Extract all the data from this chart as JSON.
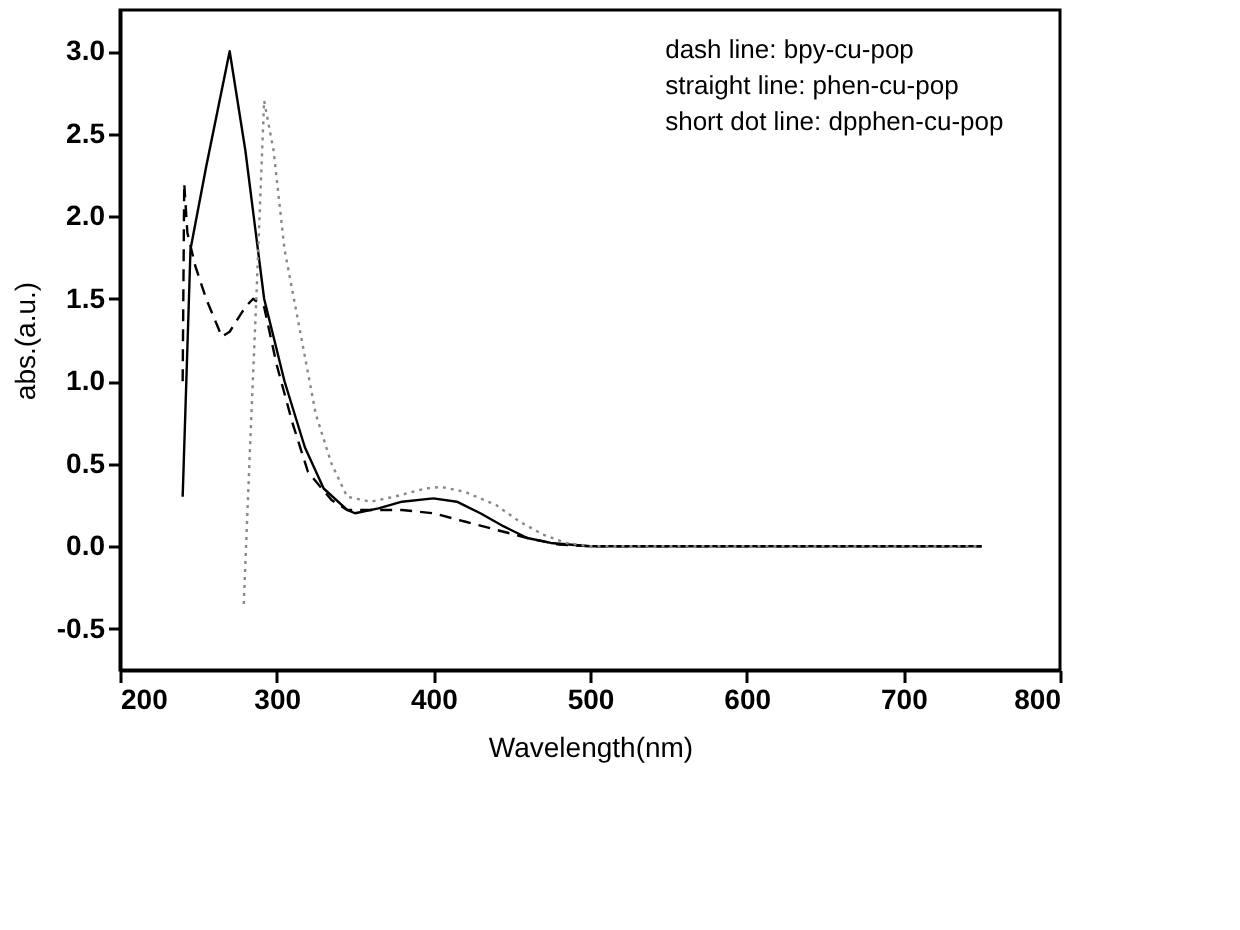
{
  "chart_data": {
    "type": "line",
    "xlabel": "Wavelength(nm)",
    "ylabel": "abs.(a.u.)",
    "xlim": [
      200,
      800
    ],
    "xticks": [
      200,
      300,
      400,
      500,
      600,
      700,
      800
    ],
    "ylim": [
      -0.75,
      3.25
    ],
    "yticks": [
      {
        "value": -0.5,
        "label": "-0.5"
      },
      {
        "value": 0,
        "label": "0.0"
      },
      {
        "value": 0.5,
        "label": "0.5"
      },
      {
        "value": 1,
        "label": "1.0"
      },
      {
        "value": 1.5,
        "label": "1.5"
      },
      {
        "value": 2,
        "label": "2.0"
      },
      {
        "value": 2.5,
        "label": "2.5"
      },
      {
        "value": 3,
        "label": "3.0"
      }
    ],
    "grid": false,
    "annotations": [
      "dash line:  bpy-cu-pop",
      "straight line:  phen-cu-pop",
      "short dot line:  dpphen-cu-pop"
    ],
    "series": [
      {
        "color": "#000000",
        "line_style": "dashed",
        "x": [
          240,
          241,
          243,
          248,
          255,
          265,
          270,
          280,
          285,
          292,
          300,
          310,
          320,
          335,
          345,
          360,
          380,
          400,
          420,
          440,
          460,
          480,
          500,
          600,
          750
        ],
        "values": [
          1.0,
          2.2,
          1.9,
          1.7,
          1.5,
          1.27,
          1.3,
          1.45,
          1.5,
          1.45,
          1.1,
          0.75,
          0.45,
          0.28,
          0.22,
          0.22,
          0.22,
          0.2,
          0.15,
          0.1,
          0.05,
          0.01,
          0.0,
          0.0,
          0.0
        ]
      },
      {
        "color": "#000000",
        "line_style": "solid",
        "x": [
          240,
          245,
          255,
          270,
          280,
          292,
          305,
          318,
          330,
          345,
          350,
          365,
          380,
          400,
          415,
          430,
          445,
          460,
          475,
          500,
          600,
          750
        ],
        "values": [
          0.3,
          1.8,
          2.3,
          3.0,
          2.4,
          1.5,
          1.0,
          0.6,
          0.35,
          0.22,
          0.2,
          0.23,
          0.27,
          0.29,
          0.27,
          0.2,
          0.12,
          0.05,
          0.02,
          0.0,
          0.0,
          0.0
        ]
      },
      {
        "color": "#888888",
        "line_style": "dotted",
        "x": [
          279,
          283,
          287,
          292,
          298,
          305,
          315,
          325,
          335,
          345,
          360,
          375,
          395,
          405,
          420,
          440,
          455,
          470,
          485,
          500,
          600,
          750
        ],
        "values": [
          -0.35,
          0.6,
          1.5,
          2.7,
          2.4,
          1.8,
          1.3,
          0.8,
          0.5,
          0.3,
          0.27,
          0.3,
          0.35,
          0.36,
          0.33,
          0.25,
          0.15,
          0.07,
          0.02,
          0.0,
          0.0,
          0.0
        ]
      }
    ]
  }
}
